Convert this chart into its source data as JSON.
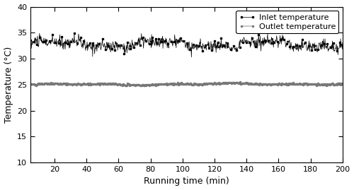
{
  "xlim": [
    5,
    200
  ],
  "ylim": [
    10,
    40
  ],
  "xticks": [
    20,
    40,
    60,
    80,
    100,
    120,
    140,
    160,
    180,
    200
  ],
  "yticks": [
    10,
    15,
    20,
    25,
    30,
    35,
    40
  ],
  "xlabel": "Running time (min)",
  "ylabel": "Temperature (°C)",
  "inlet_mean": 32.8,
  "inlet_noise_amp": 0.6,
  "outlet_mean": 25.05,
  "outlet_noise_amp": 0.08,
  "n_points": 800,
  "inlet_label": "Inlet temperature",
  "outlet_label": "Outlet temperature",
  "line_color": "#000000",
  "outlet_color": "#777777",
  "bg_color": "#ffffff",
  "legend_fontsize": 8,
  "axis_fontsize": 9,
  "tick_fontsize": 8
}
